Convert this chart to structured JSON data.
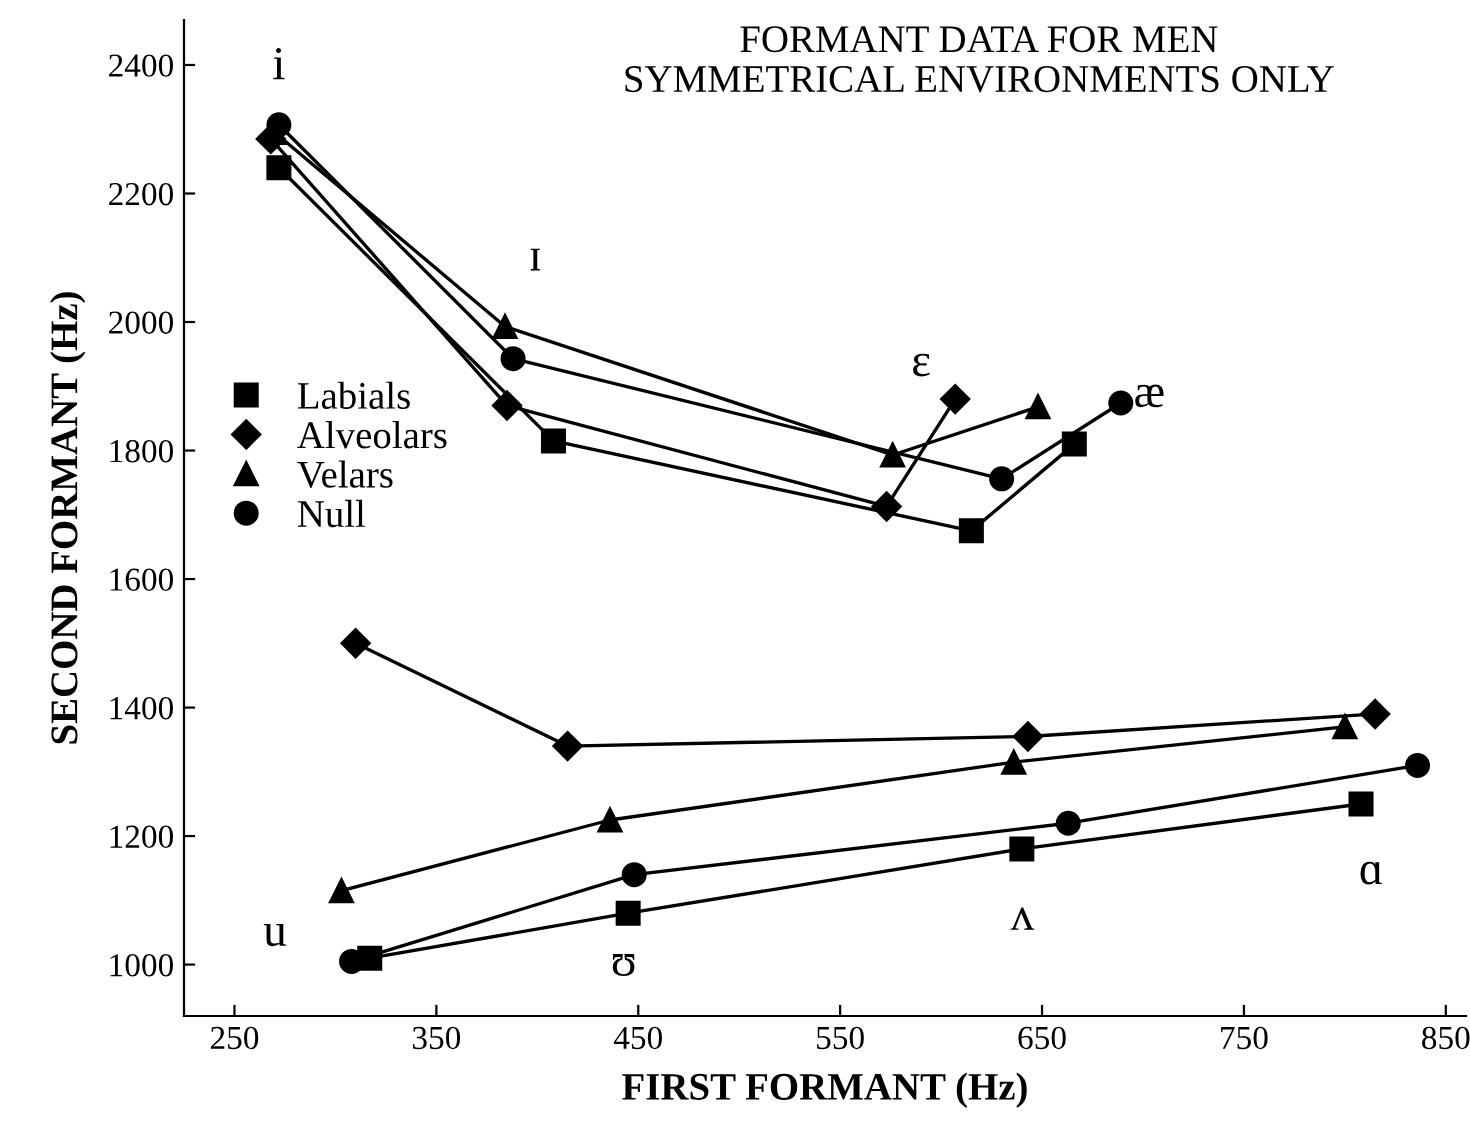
{
  "chart_data": {
    "type": "line",
    "title": "FORMANT DATA FOR MEN",
    "subtitle": "SYMMETRICAL ENVIRONMENTS ONLY",
    "xlabel": "FIRST FORMANT (Hz)",
    "ylabel": "SECOND FORMANT (Hz)",
    "xlim": [
      225,
      860
    ],
    "ylim": [
      920,
      2470
    ],
    "xticks": [
      250,
      350,
      450,
      550,
      650,
      750,
      850
    ],
    "yticks": [
      1000,
      1200,
      1400,
      1600,
      1800,
      2000,
      2200,
      2400
    ],
    "grid": false,
    "legend": "left",
    "series": [
      {
        "name": "Labials",
        "color": "#000000",
        "marker": "square",
        "x": [
          272,
          408,
          615,
          666,
          null,
          317,
          445,
          640,
          808
        ],
        "values": [
          2240,
          1815,
          1675,
          1810,
          null,
          1010,
          1080,
          1180,
          1250
        ]
      },
      {
        "name": "Alveolars",
        "color": "#000000",
        "marker": "diamond",
        "x": [
          268,
          385,
          573,
          607,
          null,
          310,
          415,
          643,
          815
        ],
        "values": [
          2285,
          1870,
          1713,
          1880,
          null,
          1500,
          1340,
          1355,
          1390
        ]
      },
      {
        "name": "Velars",
        "color": "#000000",
        "marker": "triangle",
        "x": [
          270,
          384,
          576,
          648,
          null,
          303,
          436,
          636,
          800
        ],
        "values": [
          2295,
          1993,
          1793,
          1868,
          null,
          1115,
          1225,
          1315,
          1370
        ]
      },
      {
        "name": "Null",
        "color": "#000000",
        "marker": "circle",
        "x": [
          272,
          388,
          630,
          689,
          null,
          308,
          448,
          663,
          836
        ],
        "values": [
          2307,
          1943,
          1756,
          1874,
          null,
          1005,
          1140,
          1220,
          1310
        ]
      }
    ],
    "annotations": [
      "i",
      "ɪ",
      "ɛ",
      "æ",
      "u",
      "ʊ",
      "ʌ",
      "ɑ"
    ]
  }
}
